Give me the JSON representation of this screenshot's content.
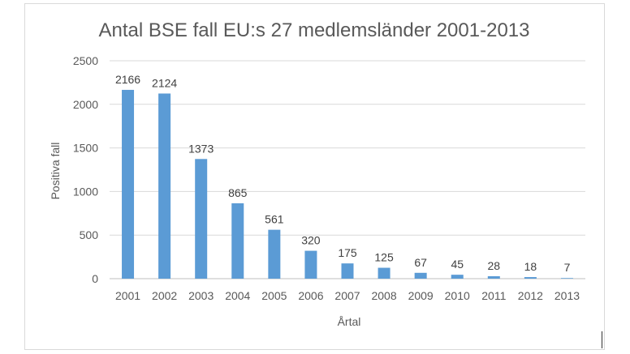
{
  "chart_data": {
    "type": "bar",
    "title": "Antal BSE fall EU:s 27 medlemsländer 2001-2013",
    "xlabel": "Årtal",
    "ylabel": "Positiva fall",
    "categories": [
      "2001",
      "2002",
      "2003",
      "2004",
      "2005",
      "2006",
      "2007",
      "2008",
      "2009",
      "2010",
      "2011",
      "2012",
      "2013"
    ],
    "values": [
      2166,
      2124,
      1373,
      865,
      561,
      320,
      175,
      125,
      67,
      45,
      28,
      18,
      7
    ],
    "ylim": [
      0,
      2500
    ],
    "yticks": [
      0,
      500,
      1000,
      1500,
      2000,
      2500
    ],
    "grid": true,
    "data_labels": true,
    "bar_color": "#5b9bd5"
  }
}
